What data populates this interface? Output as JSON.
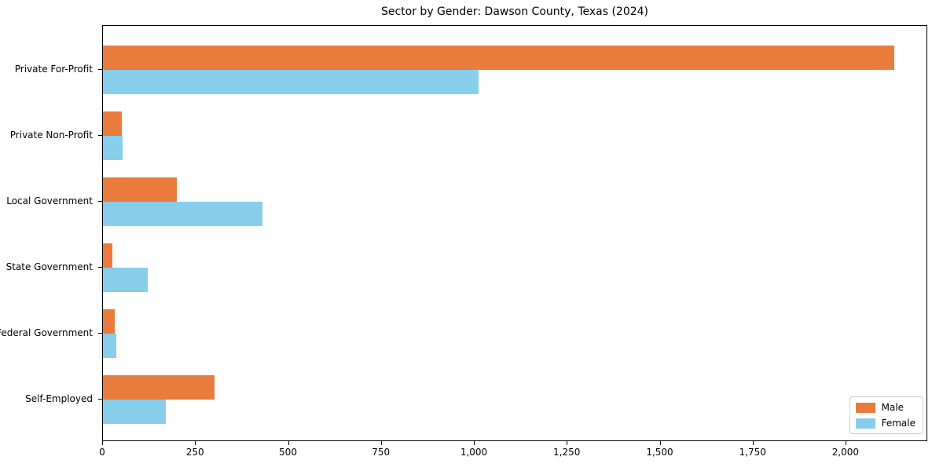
{
  "chart_data": {
    "type": "bar",
    "orientation": "horizontal",
    "title": "Sector by Gender: Dawson County, Texas (2024)",
    "categories": [
      "Private For-Profit",
      "Private Non-Profit",
      "Local Government",
      "State Government",
      "Federal Government",
      "Self-Employed"
    ],
    "series": [
      {
        "name": "Male",
        "color": "#E97C3C",
        "values": [
          2128,
          50,
          199,
          25,
          32,
          300
        ]
      },
      {
        "name": "Female",
        "color": "#87CEEB",
        "values": [
          1011,
          53,
          429,
          120,
          36,
          169
        ]
      }
    ],
    "xlabel": "",
    "ylabel": "",
    "xlim": [
      0,
      2220
    ],
    "x_ticks": [
      0,
      250,
      500,
      750,
      1000,
      1250,
      1500,
      1750,
      2000
    ],
    "x_tick_labels": [
      "0",
      "250",
      "500",
      "750",
      "1,000",
      "1,250",
      "1,500",
      "1,750",
      "2,000"
    ],
    "legend_position": "lower right",
    "grid": false,
    "bar_colors": {
      "male": "#E97C3C",
      "female": "#87CEEB"
    }
  }
}
